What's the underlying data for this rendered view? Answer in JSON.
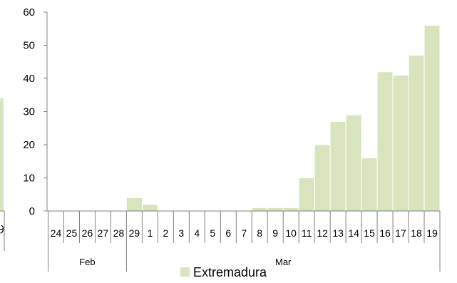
{
  "chart_data": {
    "type": "bar",
    "title": "",
    "xlabel": "",
    "ylabel": "",
    "ylim": [
      0,
      60
    ],
    "yticks": [
      0,
      10,
      20,
      30,
      40,
      50,
      60
    ],
    "grid": false,
    "legend_position": "bottom",
    "categories": [
      "24",
      "25",
      "26",
      "27",
      "28",
      "29",
      "1",
      "2",
      "3",
      "4",
      "5",
      "6",
      "7",
      "8",
      "9",
      "10",
      "11",
      "12",
      "13",
      "14",
      "15",
      "16",
      "17",
      "18",
      "19"
    ],
    "groups": [
      {
        "label": "Feb",
        "from": 0,
        "to": 4
      },
      {
        "label": "Mar",
        "from": 5,
        "to": 24
      }
    ],
    "series": [
      {
        "name": "Extremadura",
        "color": "#d7e4bd",
        "values": [
          0,
          0,
          0,
          0,
          0,
          4,
          2,
          0,
          0,
          0,
          0,
          0,
          0,
          1,
          1,
          1,
          10,
          20,
          27,
          29,
          16,
          42,
          41,
          47,
          56
        ]
      }
    ]
  }
}
